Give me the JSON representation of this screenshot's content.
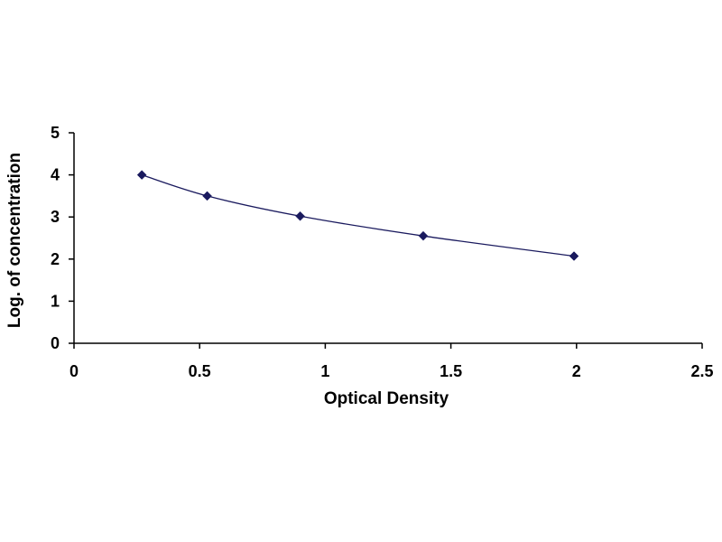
{
  "chart_data": {
    "type": "scatter",
    "title": "",
    "xlabel": "Optical Density",
    "ylabel": "Log. of concentration",
    "xlim": [
      0,
      2.5
    ],
    "ylim": [
      0,
      5
    ],
    "xticks": [
      "0",
      "0.5",
      "1",
      "1.5",
      "2",
      "2.5"
    ],
    "yticks": [
      "0",
      "1",
      "2",
      "3",
      "4",
      "5"
    ],
    "grid": false,
    "legend": "none",
    "trendline": "smooth curve",
    "series": [
      {
        "x": [
          0.27,
          0.53,
          0.9,
          1.39,
          1.99
        ],
        "y": [
          4.0,
          3.5,
          3.02,
          2.55,
          2.07
        ],
        "marker": "diamond",
        "color": "#1a1a5e"
      }
    ]
  }
}
